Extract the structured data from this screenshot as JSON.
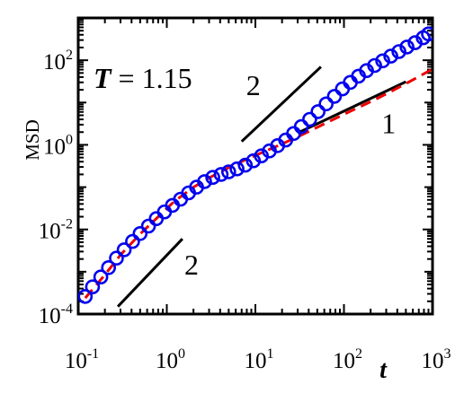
{
  "chart_data": {
    "type": "scatter",
    "title": "",
    "xlabel": "t",
    "ylabel": "MSD",
    "xscale": "log",
    "yscale": "log",
    "xlim": [
      0.1,
      1000
    ],
    "ylim": [
      0.0001,
      1000
    ],
    "x_ticks": [
      {
        "base": "10",
        "exp": "-1",
        "value": 0.1
      },
      {
        "base": "10",
        "exp": "0",
        "value": 1
      },
      {
        "base": "10",
        "exp": "1",
        "value": 10
      },
      {
        "base": "10",
        "exp": "2",
        "value": 100
      },
      {
        "base": "10",
        "exp": "3",
        "value": 1000
      }
    ],
    "y_ticks": [
      {
        "base": "10",
        "exp": "-4",
        "value": 0.0001
      },
      {
        "base": "10",
        "exp": "-2",
        "value": 0.01
      },
      {
        "base": "10",
        "exp": "0",
        "value": 1
      },
      {
        "base": "10",
        "exp": "2",
        "value": 100
      }
    ],
    "annotation": {
      "var": "T",
      "text": " = 1.15"
    },
    "series": [
      {
        "style": "markers",
        "marker": "open-circle",
        "color": "#0000ee",
        "points": [
          [
            0.12,
            0.00026
          ],
          [
            0.145,
            0.00044
          ],
          [
            0.18,
            0.00075
          ],
          [
            0.22,
            0.00125
          ],
          [
            0.27,
            0.0021
          ],
          [
            0.33,
            0.0033
          ],
          [
            0.41,
            0.0052
          ],
          [
            0.5,
            0.008
          ],
          [
            0.62,
            0.012
          ],
          [
            0.76,
            0.018
          ],
          [
            0.94,
            0.026
          ],
          [
            1.16,
            0.037
          ],
          [
            1.43,
            0.052
          ],
          [
            1.76,
            0.073
          ],
          [
            2.17,
            0.1
          ],
          [
            2.67,
            0.135
          ],
          [
            3.3,
            0.17
          ],
          [
            4.1,
            0.2
          ],
          [
            5.0,
            0.23
          ],
          [
            6.2,
            0.27
          ],
          [
            7.7,
            0.33
          ],
          [
            9.5,
            0.42
          ],
          [
            11.7,
            0.55
          ],
          [
            14.4,
            0.72
          ],
          [
            17.8,
            0.96
          ],
          [
            22,
            1.3
          ],
          [
            27,
            1.85
          ],
          [
            33,
            2.7
          ],
          [
            41,
            4.0
          ],
          [
            51,
            6.1
          ],
          [
            63,
            9.3
          ],
          [
            78,
            14
          ],
          [
            96,
            21
          ],
          [
            118,
            30
          ],
          [
            146,
            42
          ],
          [
            180,
            57
          ],
          [
            222,
            75
          ],
          [
            274,
            97
          ],
          [
            338,
            125
          ],
          [
            417,
            160
          ],
          [
            515,
            205
          ],
          [
            636,
            260
          ],
          [
            785,
            340
          ],
          [
            900,
            420
          ]
        ]
      },
      {
        "style": "dashed-line",
        "color": "#ee0000",
        "points": [
          [
            0.12,
            0.00024
          ],
          [
            0.2,
            0.00085
          ],
          [
            0.3,
            0.0025
          ],
          [
            0.5,
            0.0078
          ],
          [
            0.8,
            0.02
          ],
          [
            1.2,
            0.045
          ],
          [
            2,
            0.1
          ],
          [
            3,
            0.165
          ],
          [
            5,
            0.29
          ],
          [
            8,
            0.46
          ],
          [
            12,
            0.66
          ],
          [
            20,
            1.05
          ],
          [
            30,
            1.55
          ],
          [
            50,
            2.6
          ],
          [
            80,
            4.2
          ],
          [
            120,
            6.3
          ],
          [
            200,
            10.5
          ],
          [
            300,
            16
          ],
          [
            500,
            28
          ],
          [
            800,
            48
          ],
          [
            1000,
            62
          ]
        ]
      }
    ],
    "slope_guides": [
      {
        "label": "2",
        "x": [
          0.28,
          1.5
        ],
        "y": [
          0.00015,
          0.006
        ],
        "label_at": [
          1.9,
          0.00085
        ]
      },
      {
        "label": "2",
        "x": [
          7,
          55
        ],
        "y": [
          1.2,
          70
        ],
        "label_at": [
          9.5,
          15
        ]
      },
      {
        "label": "1",
        "x": [
          30,
          500
        ],
        "y": [
          1.9,
          31
        ],
        "label_at": [
          320,
          1.9
        ]
      }
    ],
    "grid": false,
    "legend": "none"
  }
}
